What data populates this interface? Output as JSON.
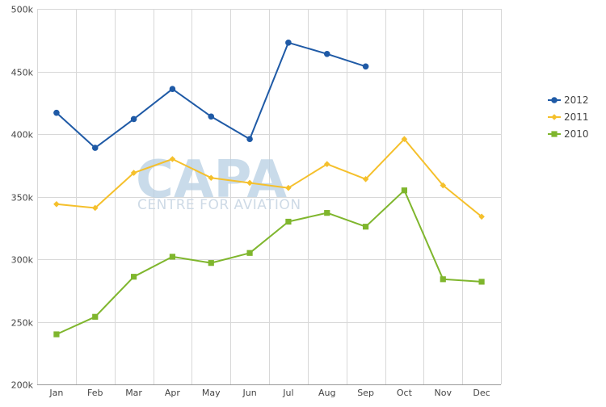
{
  "watermark": {
    "main": "CAPA",
    "sub": "CENTRE FOR AVIATION"
  },
  "colors": {
    "grid": "#d8d8d8",
    "axis": "#999999",
    "series_2012": "#1f5aa6",
    "series_2011": "#f5c02c",
    "series_2010": "#7fb62d"
  },
  "chart_data": {
    "type": "line",
    "title": "",
    "xlabel": "",
    "ylabel": "",
    "categories": [
      "Jan",
      "Feb",
      "Mar",
      "Apr",
      "May",
      "Jun",
      "Jul",
      "Aug",
      "Sep",
      "Oct",
      "Nov",
      "Dec"
    ],
    "ylim": [
      200000,
      500000
    ],
    "yticks": [
      {
        "value": 200000,
        "label": "200k"
      },
      {
        "value": 250000,
        "label": "250k"
      },
      {
        "value": 300000,
        "label": "300k"
      },
      {
        "value": 350000,
        "label": "350k"
      },
      {
        "value": 400000,
        "label": "400k"
      },
      {
        "value": 450000,
        "label": "450k"
      },
      {
        "value": 500000,
        "label": "500k"
      }
    ],
    "grid": true,
    "legend_position": "right",
    "series": [
      {
        "name": "2012",
        "color": "#1f5aa6",
        "marker": "circle",
        "values": [
          417000,
          389000,
          412000,
          436000,
          414000,
          396000,
          473000,
          464000,
          454000,
          null,
          null,
          null
        ]
      },
      {
        "name": "2011",
        "color": "#f5c02c",
        "marker": "diamond",
        "values": [
          344000,
          341000,
          369000,
          380000,
          365000,
          361000,
          357000,
          376000,
          364000,
          396000,
          359000,
          334000
        ]
      },
      {
        "name": "2010",
        "color": "#7fb62d",
        "marker": "square",
        "values": [
          240000,
          254000,
          286000,
          302000,
          297000,
          305000,
          330000,
          337000,
          326000,
          355000,
          284000,
          282000
        ]
      }
    ]
  }
}
